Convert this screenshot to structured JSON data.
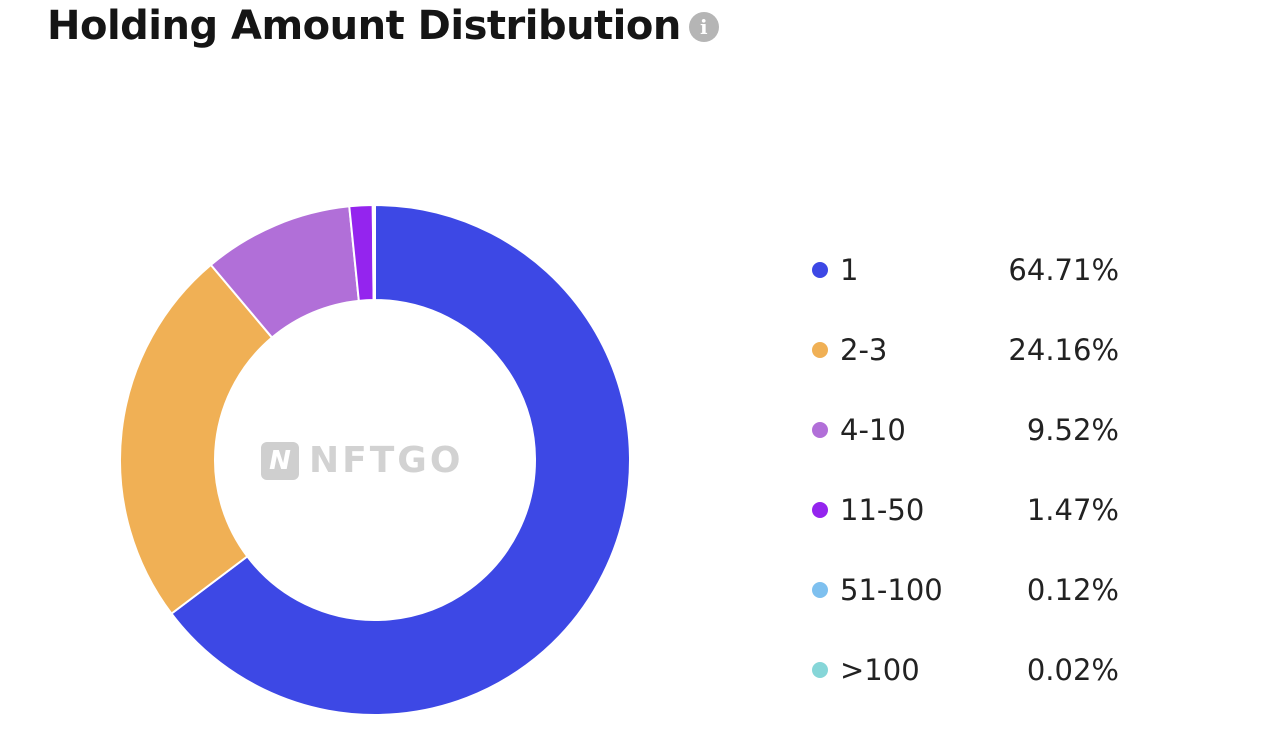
{
  "header": {
    "title": "Holding Amount Distribution",
    "info_icon": "info-icon"
  },
  "watermark": {
    "mark": "N",
    "text": "NFTGO"
  },
  "chart_data": {
    "type": "pie",
    "variant": "donut",
    "title": "Holding Amount Distribution",
    "categories": [
      "1",
      "2-3",
      "4-10",
      "11-50",
      "51-100",
      ">100"
    ],
    "values": [
      64.71,
      24.16,
      9.52,
      1.47,
      0.12,
      0.02
    ],
    "value_labels": [
      "64.71%",
      "24.16%",
      "9.52%",
      "1.47%",
      "0.12%",
      "0.02%"
    ],
    "colors": [
      "#3d48e5",
      "#f0b055",
      "#b16fd8",
      "#9424ee",
      "#7ec0ef",
      "#86d6d8"
    ],
    "start_angle": "top (12 o'clock)",
    "direction": "clockwise",
    "legend_position": "right"
  }
}
